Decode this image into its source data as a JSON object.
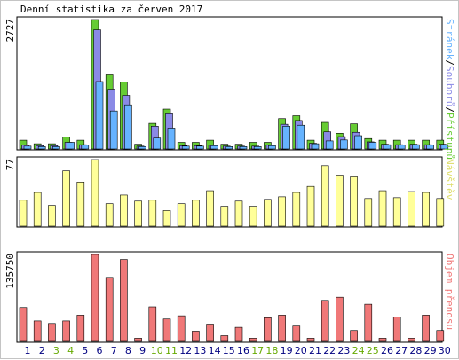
{
  "title": "Denní statistika za červen 2017",
  "days": [
    "1",
    "2",
    "3",
    "4",
    "5",
    "6",
    "7",
    "8",
    "9",
    "10",
    "11",
    "12",
    "13",
    "14",
    "15",
    "16",
    "17",
    "18",
    "19",
    "20",
    "21",
    "22",
    "23",
    "24",
    "25",
    "26",
    "27",
    "28",
    "29",
    "30"
  ],
  "weekend_days": [
    "3",
    "4",
    "10",
    "11",
    "17",
    "18",
    "24",
    "25"
  ],
  "colors": {
    "hits": "#66cc33",
    "files": "#8a8ae6",
    "pages": "#66b3ff",
    "visits": "#ffff99",
    "volume": "#f07878",
    "weekday_label": "#000080",
    "weekend_label": "#66aa00",
    "visits_label": "#dddd66",
    "volume_label": "#f07878",
    "hits_legend": "#66cc33",
    "files_legend": "#8a8ae6",
    "pages_legend": "#66b3ff"
  },
  "chart_data": [
    {
      "type": "bar",
      "ymax_label": "2727",
      "ylim": [
        0,
        2727
      ],
      "legend": [
        {
          "text": "Stránek",
          "color_key": "pages_legend"
        },
        {
          "text": "/",
          "color_key": "separator"
        },
        {
          "text": "Souborů",
          "color_key": "files_legend"
        },
        {
          "text": "/",
          "color_key": "separator"
        },
        {
          "text": "Přístupů",
          "color_key": "hits_legend"
        }
      ],
      "categories": [
        "1",
        "2",
        "3",
        "4",
        "5",
        "6",
        "7",
        "8",
        "9",
        "10",
        "11",
        "12",
        "13",
        "14",
        "15",
        "16",
        "17",
        "18",
        "19",
        "20",
        "21",
        "22",
        "23",
        "24",
        "25",
        "26",
        "27",
        "28",
        "29",
        "30"
      ],
      "series": [
        {
          "name": "Přístupů",
          "values": [
            185,
            110,
            110,
            250,
            185,
            2727,
            1560,
            1410,
            100,
            540,
            840,
            140,
            140,
            185,
            100,
            100,
            140,
            140,
            640,
            700,
            185,
            560,
            330,
            530,
            220,
            185,
            185,
            185,
            185,
            185
          ]
        },
        {
          "name": "Souborů",
          "values": [
            80,
            70,
            70,
            140,
            90,
            2510,
            1260,
            1130,
            60,
            480,
            740,
            70,
            70,
            80,
            60,
            60,
            60,
            80,
            520,
            600,
            120,
            360,
            260,
            350,
            150,
            100,
            90,
            100,
            90,
            100
          ]
        },
        {
          "name": "Stránek",
          "values": [
            60,
            50,
            50,
            140,
            80,
            1420,
            800,
            930,
            50,
            230,
            440,
            60,
            60,
            70,
            50,
            50,
            50,
            70,
            480,
            500,
            110,
            170,
            190,
            280,
            140,
            90,
            80,
            90,
            80,
            90
          ]
        }
      ]
    },
    {
      "type": "bar",
      "ymax_label": "77",
      "ylim": [
        0,
        77
      ],
      "legend": [
        {
          "text": "Návštěv",
          "color_key": "visits_label"
        }
      ],
      "categories": [
        "1",
        "2",
        "3",
        "4",
        "5",
        "6",
        "7",
        "8",
        "9",
        "10",
        "11",
        "12",
        "13",
        "14",
        "15",
        "16",
        "17",
        "18",
        "19",
        "20",
        "21",
        "22",
        "23",
        "24",
        "25",
        "26",
        "27",
        "28",
        "29",
        "30"
      ],
      "series": [
        {
          "name": "Návštěv",
          "values": [
            30,
            39,
            24,
            64,
            51,
            77,
            26,
            36,
            29,
            30,
            18,
            26,
            30,
            41,
            23,
            29,
            23,
            31,
            34,
            39,
            46,
            70,
            59,
            57,
            32,
            41,
            33,
            40,
            39,
            32
          ]
        }
      ]
    },
    {
      "type": "bar",
      "ymax_label": "135750",
      "ylim": [
        0,
        135750
      ],
      "legend": [
        {
          "text": "Objem přenosu",
          "color_key": "volume_label"
        }
      ],
      "categories": [
        "1",
        "2",
        "3",
        "4",
        "5",
        "6",
        "7",
        "8",
        "9",
        "10",
        "11",
        "12",
        "13",
        "14",
        "15",
        "16",
        "17",
        "18",
        "19",
        "20",
        "21",
        "22",
        "23",
        "24",
        "25",
        "26",
        "27",
        "28",
        "29",
        "30"
      ],
      "series": [
        {
          "name": "Objem přenosu",
          "values": [
            53000,
            32000,
            28000,
            32000,
            41000,
            135750,
            100000,
            128000,
            5000,
            54000,
            35000,
            40000,
            16000,
            27000,
            9000,
            22000,
            5000,
            37000,
            41000,
            24000,
            5000,
            64000,
            69000,
            17000,
            58000,
            5000,
            38000,
            5000,
            41000,
            17000
          ]
        }
      ]
    }
  ]
}
